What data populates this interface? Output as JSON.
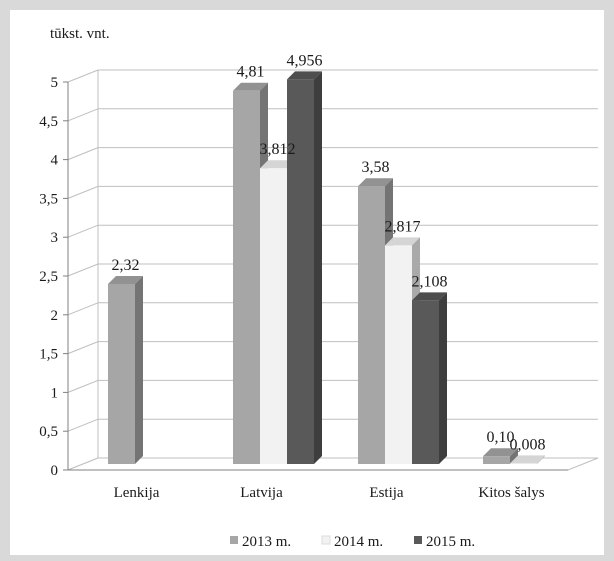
{
  "chart_data": {
    "type": "bar",
    "ylabel": "tūkst. vnt.",
    "categories": [
      "Lenkija",
      "Latvija",
      "Estija",
      "Kitos šalys"
    ],
    "ylim": [
      0,
      5
    ],
    "yticks": [
      "0",
      "0,5",
      "1",
      "1,5",
      "2",
      "2,5",
      "3",
      "3,5",
      "4",
      "4,5",
      "5"
    ],
    "grid": true,
    "legend_position": "bottom",
    "series": [
      {
        "name": "2013 m.",
        "color": "#a6a6a6",
        "values": [
          2.32,
          4.81,
          3.58,
          0.1
        ],
        "labels": [
          "2,32",
          "4,81",
          "3,58",
          "0,10"
        ]
      },
      {
        "name": "2014 m.",
        "color": "#f2f2f2",
        "values": [
          null,
          3.812,
          2.817,
          0.008
        ],
        "labels": [
          "",
          "3,812",
          "2,817",
          "0,008"
        ]
      },
      {
        "name": "2015 m.",
        "color": "#595959",
        "values": [
          null,
          4.956,
          2.108,
          null
        ],
        "labels": [
          "",
          "4,956",
          "2,108",
          ""
        ]
      }
    ]
  }
}
